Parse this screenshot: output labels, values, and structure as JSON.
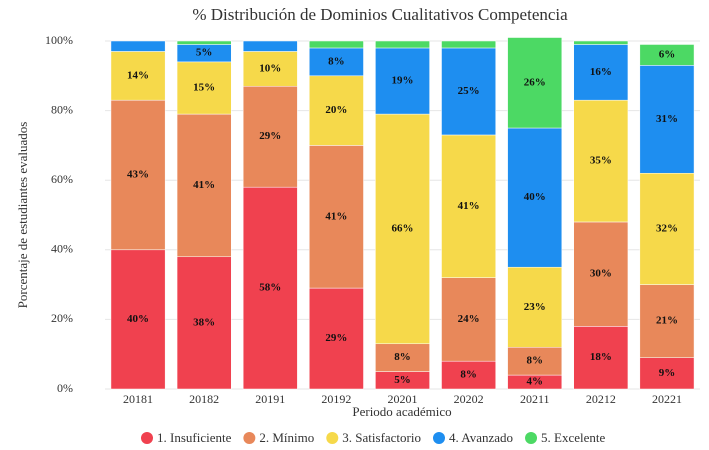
{
  "chart_data": {
    "type": "stacked_bar",
    "title": "% Distribución de Dominios Cualitativos Competencia",
    "x_label": "Periodo académico",
    "y_label": "Porcentaje de estudiantes evaluados",
    "categories": [
      "20181",
      "20182",
      "20191",
      "20192",
      "20201",
      "20202",
      "20211",
      "20212",
      "20221"
    ],
    "series": [
      {
        "name": "1. Insuficiente",
        "color": "#f0414f",
        "values": [
          40,
          38,
          58,
          29,
          5,
          8,
          4,
          18,
          9
        ],
        "value_labels": [
          "40%",
          "38%",
          "58%",
          "29%",
          "5%",
          "8%",
          "4%",
          "18%",
          "9%"
        ]
      },
      {
        "name": "2. Mínimo",
        "color": "#e8885a",
        "values": [
          43,
          41,
          29,
          41,
          8,
          24,
          8,
          30,
          21
        ],
        "value_labels": [
          "43%",
          "41%",
          "29%",
          "41%",
          "8%",
          "24%",
          "8%",
          "30%",
          "21%"
        ]
      },
      {
        "name": "3. Satisfactorio",
        "color": "#f6d94a",
        "values": [
          14,
          15,
          10,
          20,
          66,
          41,
          23,
          35,
          32
        ],
        "value_labels": [
          "14%",
          "15%",
          "10%",
          "20%",
          "66%",
          "41%",
          "23%",
          "35%",
          "32%"
        ]
      },
      {
        "name": "4. Avanzado",
        "color": "#1e8ef0",
        "values": [
          3,
          5,
          3,
          8,
          19,
          25,
          40,
          16,
          31
        ],
        "value_labels": [
          null,
          "5%",
          null,
          "8%",
          "19%",
          "25%",
          "40%",
          "16%",
          "31%"
        ]
      },
      {
        "name": "5. Excelente",
        "color": "#4cd964",
        "values": [
          0,
          1,
          0,
          2,
          2,
          2,
          26,
          1,
          6
        ],
        "value_labels": [
          null,
          null,
          null,
          null,
          null,
          null,
          "26%",
          null,
          "6%"
        ]
      }
    ],
    "ylim": [
      0,
      100
    ],
    "yticks": [
      {
        "value": 0,
        "label": "0%"
      },
      {
        "value": 20,
        "label": "20%"
      },
      {
        "value": 40,
        "label": "40%"
      },
      {
        "value": 60,
        "label": "60%"
      },
      {
        "value": 80,
        "label": "80%"
      },
      {
        "value": 100,
        "label": "100%"
      }
    ],
    "grid": true,
    "legend": "bottom"
  }
}
